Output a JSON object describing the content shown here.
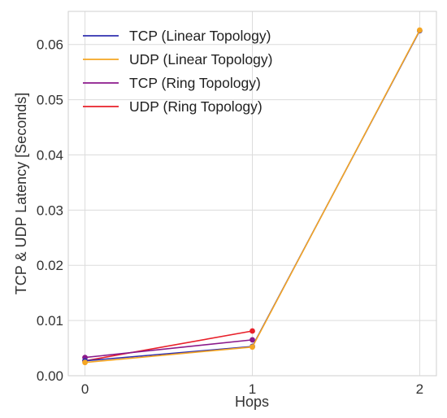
{
  "chart_data": {
    "type": "line",
    "title": "",
    "xlabel": "Hops",
    "ylabel": "TCP & UDP Latency  [Seconds]",
    "x": [
      0,
      1,
      2
    ],
    "xlim": [
      -0.1,
      2.1
    ],
    "ylim": [
      0.0,
      0.066
    ],
    "xticks": [
      "0",
      "1",
      "2"
    ],
    "yticks": [
      "0.00",
      "0.01",
      "0.02",
      "0.03",
      "0.04",
      "0.05",
      "0.06"
    ],
    "grid": true,
    "legend_position": "top-left",
    "series": [
      {
        "name": "TCP (Linear Topology)",
        "color": "#3030b0",
        "values": [
          0.0027,
          0.0053,
          0.0625
        ]
      },
      {
        "name": "UDP (Linear Topology)",
        "color": "#f5a623",
        "values": [
          0.0024,
          0.0052,
          0.0626
        ]
      },
      {
        "name": "TCP (Ring Topology)",
        "color": "#8b1a8b",
        "values": [
          0.0033,
          0.0065,
          null
        ]
      },
      {
        "name": "UDP (Ring Topology)",
        "color": "#e8202a",
        "values": [
          0.0027,
          0.0081,
          null
        ]
      }
    ]
  }
}
